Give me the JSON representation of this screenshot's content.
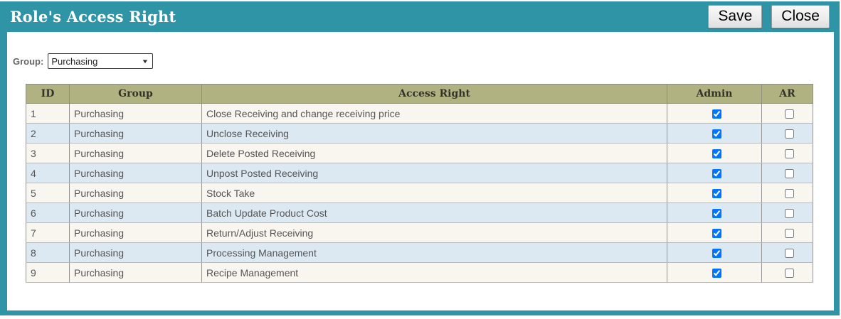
{
  "header": {
    "title": "Role's Access Right",
    "save_label": "Save",
    "close_label": "Close"
  },
  "filter": {
    "group_label": "Group:",
    "group_selected": "Purchasing",
    "dropdown_arrow": "▼"
  },
  "colors": {
    "teal_frame": "#2E94A6",
    "table_header_bg": "#B0B281",
    "row_odd_bg": "#F8F6EF",
    "row_even_bg": "#DCE9F2"
  },
  "table": {
    "columns": [
      "ID",
      "Group",
      "Access Right",
      "Admin",
      "AR"
    ],
    "rows": [
      {
        "id": "1",
        "group": "Purchasing",
        "access_right": "Close Receiving and change receiving price",
        "admin": true,
        "ar": false
      },
      {
        "id": "2",
        "group": "Purchasing",
        "access_right": "Unclose Receiving",
        "admin": true,
        "ar": false
      },
      {
        "id": "3",
        "group": "Purchasing",
        "access_right": "Delete Posted Receiving",
        "admin": true,
        "ar": false
      },
      {
        "id": "4",
        "group": "Purchasing",
        "access_right": "Unpost Posted Receiving",
        "admin": true,
        "ar": false
      },
      {
        "id": "5",
        "group": "Purchasing",
        "access_right": "Stock Take",
        "admin": true,
        "ar": false
      },
      {
        "id": "6",
        "group": "Purchasing",
        "access_right": "Batch Update Product Cost",
        "admin": true,
        "ar": false
      },
      {
        "id": "7",
        "group": "Purchasing",
        "access_right": "Return/Adjust Receiving",
        "admin": true,
        "ar": false
      },
      {
        "id": "8",
        "group": "Purchasing",
        "access_right": "Processing Management",
        "admin": true,
        "ar": false
      },
      {
        "id": "9",
        "group": "Purchasing",
        "access_right": "Recipe Management",
        "admin": true,
        "ar": false
      }
    ]
  }
}
